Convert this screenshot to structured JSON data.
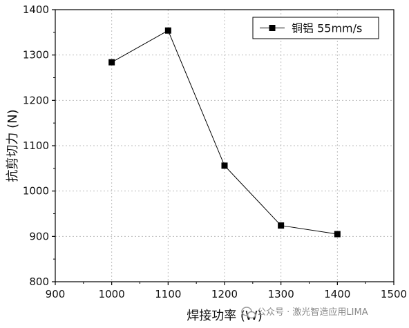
{
  "chart_data": {
    "type": "line",
    "title": "",
    "xlabel": "焊接功率 (W)",
    "ylabel": "抗剪切力 (N)",
    "xlim": [
      900,
      1500
    ],
    "ylim": [
      800,
      1400
    ],
    "xticks": [
      900,
      1000,
      1100,
      1200,
      1300,
      1400,
      1500
    ],
    "yticks": [
      800,
      900,
      1000,
      1100,
      1200,
      1300,
      1400
    ],
    "grid": true,
    "legend": "top-right",
    "series": [
      {
        "name": "铜铝 55mm/s",
        "marker": "square",
        "color": "#000000",
        "x": [
          1000,
          1100,
          1200,
          1300,
          1400
        ],
        "y": [
          1284,
          1354,
          1056,
          924,
          905
        ]
      }
    ]
  },
  "watermark": {
    "icon": "wechat-icon",
    "text": "公众号 · 激光智造应用LIMA"
  }
}
